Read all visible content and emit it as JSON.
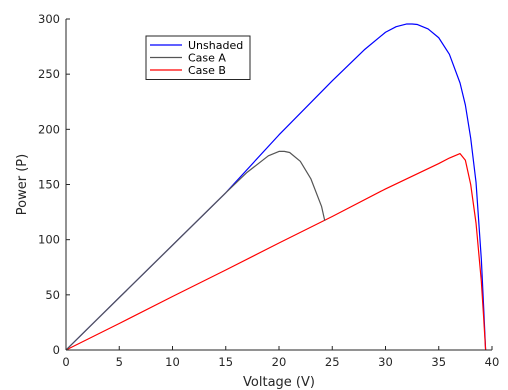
{
  "chart_data": {
    "type": "line",
    "title": "",
    "xlabel": "Voltage (V)",
    "ylabel": "Power (P)",
    "xlim": [
      0,
      40
    ],
    "ylim": [
      0,
      300
    ],
    "xticks": [
      0,
      5,
      10,
      15,
      20,
      25,
      30,
      35,
      40
    ],
    "yticks": [
      0,
      50,
      100,
      150,
      200,
      250,
      300
    ],
    "grid": false,
    "legend_position": "upper-left",
    "series": [
      {
        "name": "Unshaded",
        "color": "#0000ff",
        "x": [
          0,
          5,
          10,
          15,
          20,
          25,
          28,
          30,
          31,
          32,
          32.5,
          33,
          34,
          35,
          36,
          37,
          37.5,
          38,
          38.5,
          39,
          39.2,
          39.4
        ],
        "y": [
          0,
          47.5,
          95,
          142.5,
          195,
          244,
          272,
          288,
          293,
          295.5,
          295.5,
          295,
          291,
          283,
          268,
          242,
          222,
          192,
          152,
          82,
          42,
          0
        ]
      },
      {
        "name": "Case A",
        "color": "#555555",
        "x": [
          0,
          5,
          10,
          15,
          17,
          19,
          20,
          20.5,
          21,
          22,
          23,
          24,
          24.3
        ],
        "y": [
          0,
          47.5,
          95,
          142.5,
          161,
          176,
          180,
          180,
          179,
          171,
          155,
          130,
          117
        ]
      },
      {
        "name": "Case B",
        "color": "#ff0000",
        "x": [
          0,
          5,
          10,
          15,
          20,
          25,
          30,
          35,
          36,
          36.5,
          37,
          37.5,
          38,
          38.5,
          39,
          39.2,
          39.4
        ],
        "y": [
          0,
          24,
          48.5,
          72.5,
          97,
          121,
          146,
          169,
          174,
          176,
          178,
          172,
          150,
          115,
          62,
          32,
          0
        ]
      }
    ]
  }
}
